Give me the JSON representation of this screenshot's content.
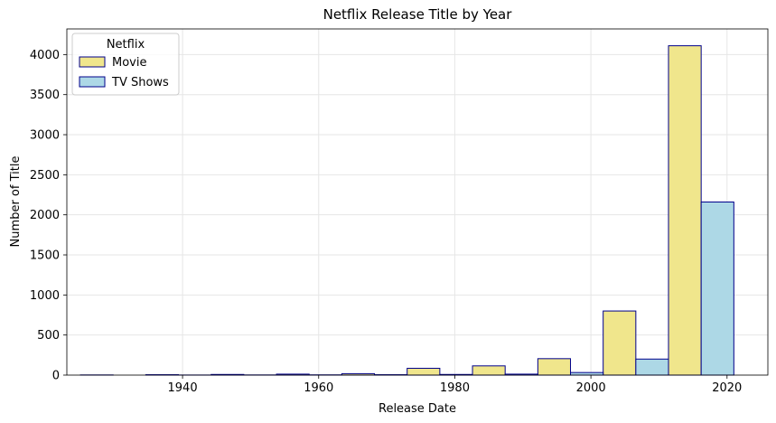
{
  "chart_data": {
    "type": "bar",
    "title": "Netflix Release Title by Year",
    "xlabel": "Release Date",
    "ylabel": "Number of Title",
    "xlim": [
      1923,
      2026
    ],
    "ylim": [
      0,
      4320
    ],
    "xticks": [
      1940,
      1960,
      1980,
      2000,
      2020
    ],
    "yticks": [
      0,
      500,
      1000,
      1500,
      2000,
      2500,
      3000,
      3500,
      4000
    ],
    "grid": true,
    "legend": {
      "title": "Netflix",
      "placement": "top-left"
    },
    "bin_edges": [
      1925,
      1934.6,
      1944.2,
      1953.8,
      1963.4,
      1973,
      1982.6,
      1992.2,
      2001.8,
      2011.4,
      2021
    ],
    "series": [
      {
        "name": "Movie",
        "color": "#f0e68c",
        "values": [
          2,
          5,
          8,
          12,
          18,
          85,
          115,
          205,
          800,
          4110
        ]
      },
      {
        "name": "TV Shows",
        "color": "#add8e6",
        "values": [
          0,
          1,
          2,
          3,
          5,
          8,
          12,
          32,
          200,
          2160
        ]
      }
    ],
    "bar_edge_color": "#00008b"
  }
}
